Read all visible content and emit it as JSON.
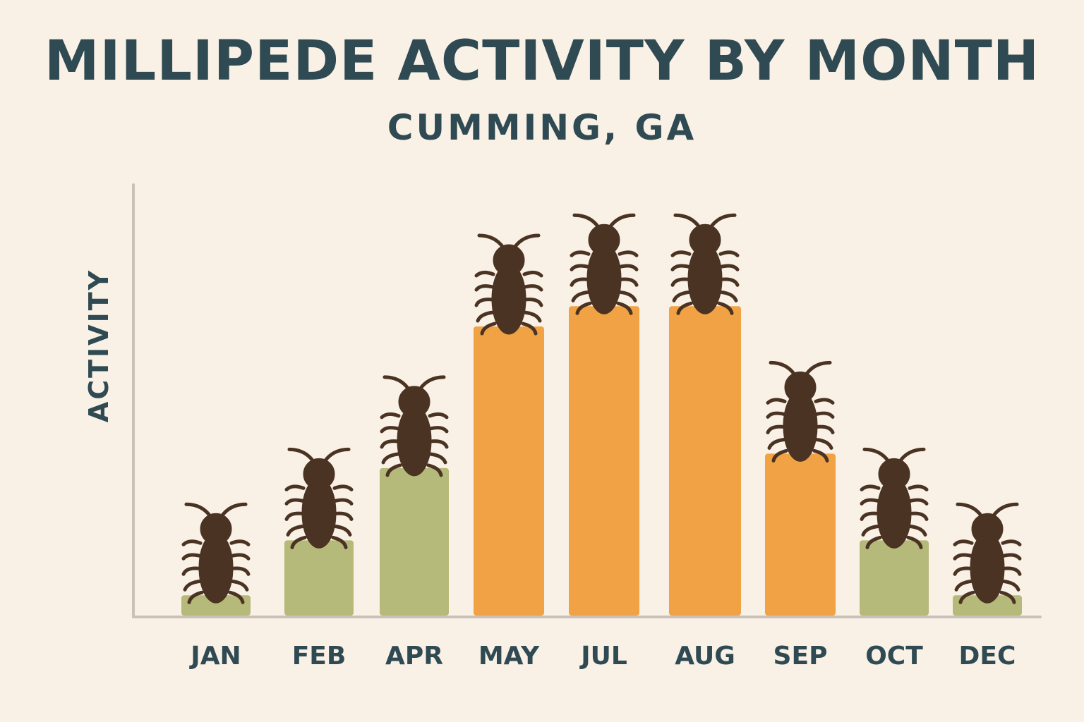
{
  "chart_data": {
    "type": "bar",
    "title": "MILLIPEDE ACTIVITY BY MONTH",
    "subtitle": "CUMMING, GA",
    "xlabel": "",
    "ylabel": "ACTIVITY",
    "categories": [
      "JAN",
      "FEB",
      "APR",
      "MAY",
      "JUL",
      "AUG",
      "SEP",
      "OCT",
      "DEC"
    ],
    "values": [
      0.7,
      2.6,
      5.1,
      10.0,
      10.7,
      10.7,
      5.6,
      2.6,
      0.7
    ],
    "ylim": [
      0,
      15
    ],
    "grid": false,
    "legend": "none",
    "bar_colors": [
      "#b5b97a",
      "#b5b97a",
      "#b5b97a",
      "#f0a244",
      "#f0a244",
      "#f0a244",
      "#f0a244",
      "#b5b97a",
      "#b5b97a"
    ],
    "marker_icon": "millipede-icon"
  },
  "colors": {
    "background": "#f9f1e6",
    "text": "#2f4a52",
    "low_activity": "#b5b97a",
    "high_activity": "#f0a244",
    "axis": "#c9c2b8",
    "bug": "#4a3323"
  }
}
